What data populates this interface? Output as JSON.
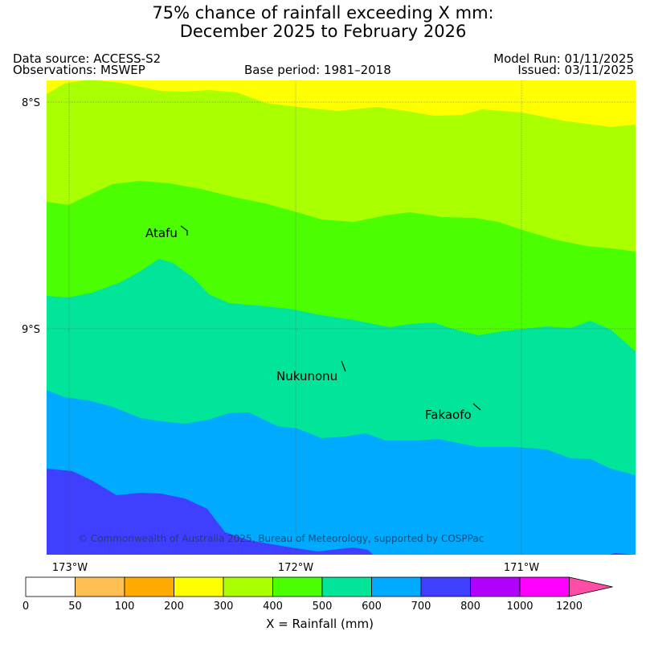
{
  "header": {
    "title_line1": "75% chance of rainfall exceeding X mm:",
    "title_line2": "December 2025 to February 2026",
    "data_source": "Data source: ACCESS-S2",
    "observations": "Observations: MSWEP",
    "base_period": "Base period: 1981–2018",
    "model_run": "Model Run: 01/11/2025",
    "issued": "Issued: 03/11/2025"
  },
  "map": {
    "lat_labels": [
      "8°S",
      "9°S"
    ],
    "lon_labels": [
      "173°W",
      "172°W",
      "171°W"
    ],
    "places": [
      "Atafu",
      "Nukunonu",
      "Fakaofo"
    ],
    "copyright": "© Commonwealth of Australia 2025, Bureau of Meteorology, supported by COSPPac"
  },
  "legend": {
    "tick_labels": [
      "0",
      "50",
      "100",
      "200",
      "300",
      "400",
      "500",
      "600",
      "700",
      "800",
      "1000",
      "1200"
    ],
    "colors": [
      "#ffffff",
      "#ffbf55",
      "#ffaa00",
      "#ffff00",
      "#aaff00",
      "#4cff00",
      "#00e59a",
      "#00aaff",
      "#3f3fff",
      "#b200ff",
      "#ff00ff",
      "#ff4da6"
    ],
    "title": "X = Rainfall (mm)"
  }
}
